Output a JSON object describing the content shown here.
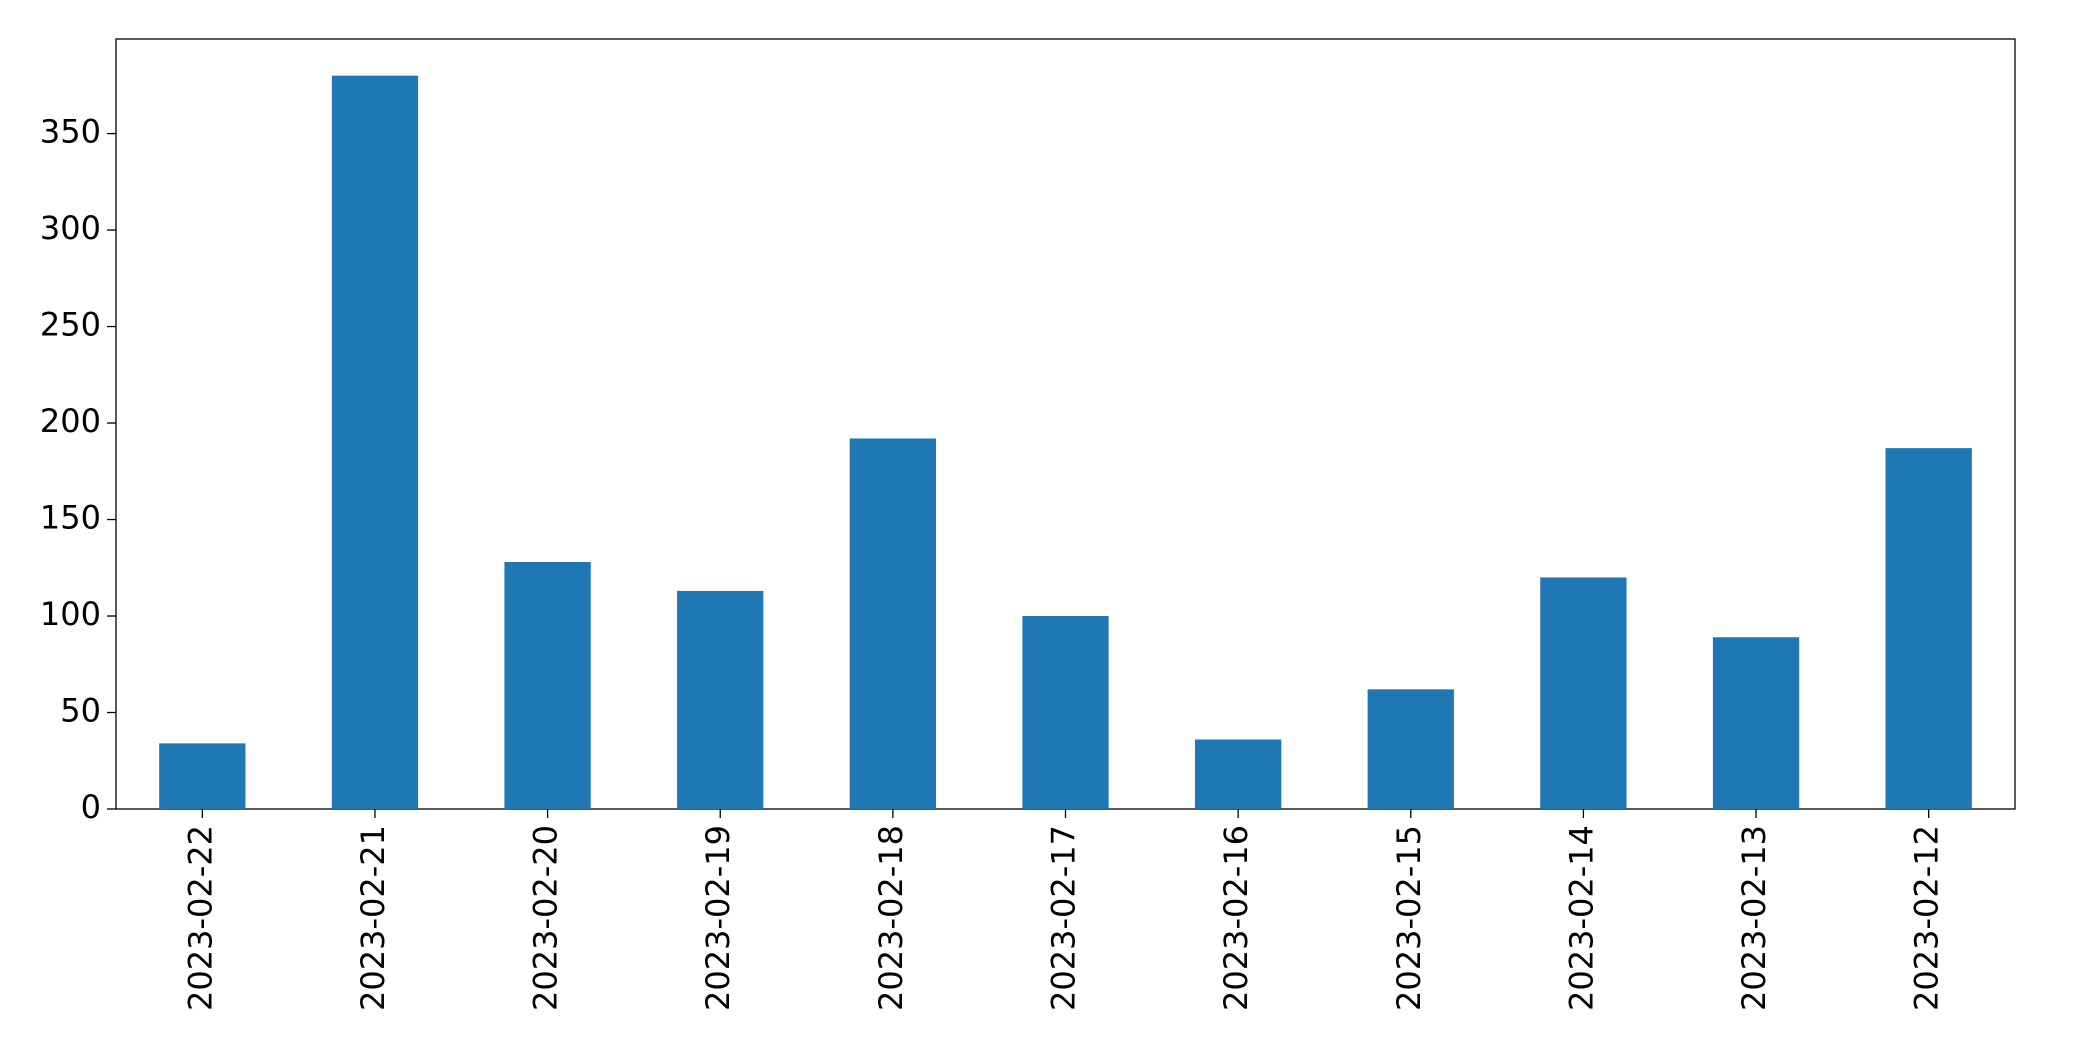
{
  "chart_data": {
    "type": "bar",
    "categories": [
      "2023-02-22",
      "2023-02-21",
      "2023-02-20",
      "2023-02-19",
      "2023-02-18",
      "2023-02-17",
      "2023-02-16",
      "2023-02-15",
      "2023-02-14",
      "2023-02-13",
      "2023-02-12"
    ],
    "values": [
      34,
      380,
      128,
      113,
      192,
      100,
      36,
      62,
      120,
      89,
      187
    ],
    "color": "#1f77b4",
    "ylim": [
      0,
      399
    ],
    "yticks": [
      0,
      50,
      100,
      150,
      200,
      250,
      300,
      350
    ],
    "grid": false
  }
}
